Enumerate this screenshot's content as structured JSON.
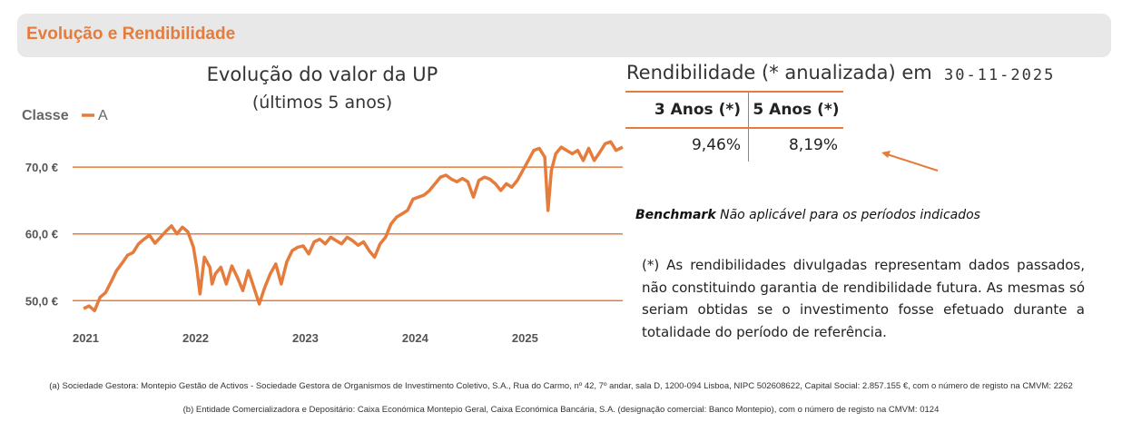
{
  "header": {
    "title": "Evolução e Rendibilidade"
  },
  "chart_data": {
    "type": "line",
    "title": "Evolução do valor da UP",
    "subtitle": "(últimos 5 anos)",
    "legend_title": "Classe",
    "series": [
      {
        "name": "A",
        "color": "#e57c3c",
        "x": [
          2021.0,
          2021.05,
          2021.1,
          2021.15,
          2021.2,
          2021.25,
          2021.3,
          2021.35,
          2021.4,
          2021.45,
          2021.5,
          2021.55,
          2021.6,
          2021.65,
          2021.7,
          2021.75,
          2021.8,
          2021.85,
          2021.9,
          2021.95,
          2022.0,
          2022.03,
          2022.06,
          2022.1,
          2022.15,
          2022.17,
          2022.2,
          2022.25,
          2022.3,
          2022.35,
          2022.4,
          2022.45,
          2022.5,
          2022.55,
          2022.6,
          2022.65,
          2022.7,
          2022.75,
          2022.8,
          2022.85,
          2022.9,
          2022.95,
          2023.0,
          2023.05,
          2023.1,
          2023.15,
          2023.2,
          2023.25,
          2023.3,
          2023.35,
          2023.4,
          2023.45,
          2023.5,
          2023.55,
          2023.6,
          2023.65,
          2023.7,
          2023.75,
          2023.8,
          2023.85,
          2023.9,
          2023.95,
          2024.0,
          2024.05,
          2024.1,
          2024.15,
          2024.2,
          2024.25,
          2024.3,
          2024.35,
          2024.4,
          2024.45,
          2024.5,
          2024.55,
          2024.6,
          2024.65,
          2024.7,
          2024.75,
          2024.8,
          2024.85,
          2024.9,
          2024.95,
          2025.0,
          2025.05,
          2025.1,
          2025.15,
          2025.2,
          2025.23,
          2025.26,
          2025.3,
          2025.35,
          2025.4,
          2025.45,
          2025.5,
          2025.55,
          2025.6,
          2025.65,
          2025.7,
          2025.75,
          2025.8,
          2025.85,
          2025.91
        ],
        "values": [
          48.8,
          49.2,
          48.5,
          50.5,
          51.2,
          52.8,
          54.5,
          55.6,
          56.8,
          57.2,
          58.5,
          59.2,
          59.8,
          58.6,
          59.5,
          60.4,
          61.2,
          60.0,
          61.0,
          60.3,
          58.0,
          55.0,
          51.0,
          56.5,
          55.0,
          52.5,
          54.0,
          55.0,
          52.5,
          55.2,
          53.5,
          51.5,
          54.5,
          52.0,
          49.5,
          52.0,
          54.0,
          55.5,
          52.5,
          55.8,
          57.5,
          58.0,
          58.2,
          57.0,
          58.8,
          59.2,
          58.5,
          59.5,
          59.0,
          58.5,
          59.5,
          59.0,
          58.3,
          58.8,
          57.5,
          56.5,
          58.5,
          59.5,
          61.5,
          62.5,
          63.0,
          63.5,
          65.2,
          65.5,
          65.8,
          66.5,
          67.5,
          68.5,
          68.8,
          68.2,
          67.8,
          68.3,
          67.8,
          65.5,
          68.0,
          68.5,
          68.2,
          67.5,
          66.5,
          67.5,
          67.0,
          68.0,
          69.5,
          71.0,
          72.5,
          72.8,
          71.5,
          63.5,
          69.5,
          72.0,
          73.0,
          72.5,
          72.0,
          72.5,
          71.0,
          72.8,
          71.0,
          72.2,
          73.5,
          73.8,
          72.5,
          73.0
        ]
      }
    ],
    "x_ticks": [
      "2021",
      "2022",
      "2023",
      "2024",
      "2025"
    ],
    "x_tick_values": [
      2021,
      2022,
      2023,
      2024,
      2025
    ],
    "y_ticks": [
      "50,0 €",
      "60,0 €",
      "70,0 €"
    ],
    "y_tick_values": [
      50,
      60,
      70
    ],
    "xlim": [
      2020.9,
      2025.91
    ],
    "ylim": [
      46.5,
      76.0
    ],
    "grid": "horizontal"
  },
  "returns": {
    "title": "Rendibilidade (* anualizada) em",
    "date": "30-11-2025",
    "headers": [
      "3 Anos (*)",
      "5 Anos (*)"
    ],
    "values": [
      "9,46%",
      "8,19%"
    ]
  },
  "benchmark": {
    "label": "Benchmark",
    "text": " Não aplicável para os períodos indicados"
  },
  "disclaimer": "(*) As rendibilidades divulgadas representam dados passados, não constituindo garantia de rendibilidade futura. As mesmas só seriam obtidas se o investimento fosse efetuado durante a totalidade do período de referência.",
  "footnotes": {
    "a": "(a) Sociedade Gestora: Montepio Gestão de Activos - Sociedade Gestora de Organismos de Investimento Coletivo, S.A., Rua do Carmo, nº 42, 7º andar, sala D, 1200-094 Lisboa, NIPC 502608622, Capital Social: 2.857.155 €, com o número de registo na CMVM: 2262",
    "b": "(b) Entidade Comercializadora e Depositário: Caixa Económica Montepio Geral, Caixa Económica Bancária, S.A. (designação comercial: Banco Montepio), com o número de registo na CMVM: 0124"
  },
  "colors": {
    "accent": "#e57c3c",
    "header_bg": "#e8e8e8"
  }
}
